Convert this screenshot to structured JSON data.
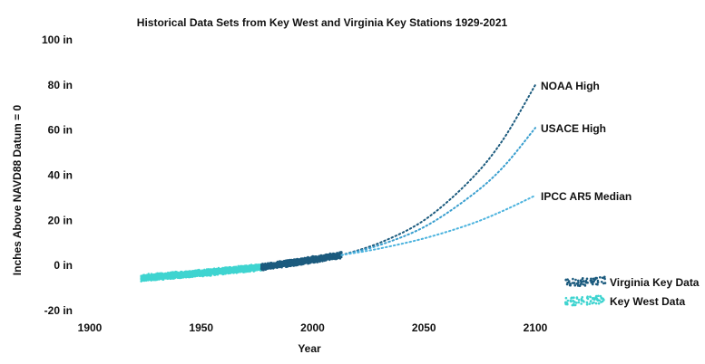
{
  "chart_data": {
    "type": "scatter",
    "title": "Historical Data Sets from Key West and Virginia Key Stations 1929-2021",
    "xlabel": "Year",
    "ylabel": "Inches Above NAVD88  Datum = 0",
    "xlim": [
      1900,
      2100
    ],
    "ylim": [
      -20,
      100
    ],
    "x_ticks": [
      1900,
      1950,
      2000,
      2050,
      2100
    ],
    "x_tick_labels": [
      "1900",
      "1950",
      "2000",
      "2050",
      "2100"
    ],
    "y_ticks": [
      100,
      80,
      60,
      40,
      20,
      0,
      -20
    ],
    "y_tick_labels": [
      "100 in",
      "80 in",
      "60 in",
      "40 in",
      "20 in",
      "0 in",
      "-20 in"
    ],
    "grid": false,
    "legend_position": "bottom-right",
    "series": [
      {
        "name": "Key West Data",
        "kind": "observed",
        "color": "#3fd4d0",
        "x_range": [
          1923,
          1977
        ],
        "y_trend": [
          [
            1923,
            -5.6
          ],
          [
            1950,
            -3.4
          ],
          [
            1977,
            -0.8
          ]
        ],
        "spread": 1.6
      },
      {
        "name": "Virginia Key Data",
        "kind": "observed",
        "color": "#1c5b7e",
        "x_range": [
          1977,
          2013
        ],
        "y_trend": [
          [
            1977,
            -0.8
          ],
          [
            1995,
            1.8
          ],
          [
            2013,
            4.6
          ]
        ],
        "spread": 1.6
      },
      {
        "name": "NOAA High",
        "kind": "projection",
        "color": "#1c5b7e",
        "x": [
          2013,
          2030,
          2050,
          2070,
          2085,
          2100
        ],
        "y": [
          4.6,
          10,
          20,
          37,
          55,
          80
        ]
      },
      {
        "name": "USACE High",
        "kind": "projection",
        "color": "#3a9fcf",
        "x": [
          2013,
          2030,
          2050,
          2070,
          2085,
          2100
        ],
        "y": [
          4.6,
          9,
          17,
          30,
          43,
          61
        ]
      },
      {
        "name": "IPCC AR5 Median",
        "kind": "projection",
        "color": "#4cb3de",
        "x": [
          2013,
          2030,
          2050,
          2070,
          2085,
          2100
        ],
        "y": [
          4.6,
          7.5,
          12,
          18,
          24,
          31
        ]
      }
    ],
    "annotations": [
      "NOAA High",
      "USACE High",
      "IPCC AR5 Median"
    ],
    "legend": [
      {
        "label": "Virginia Key Data",
        "color": "#1c5b7e"
      },
      {
        "label": "Key West Data",
        "color": "#3fd4d0"
      }
    ]
  }
}
